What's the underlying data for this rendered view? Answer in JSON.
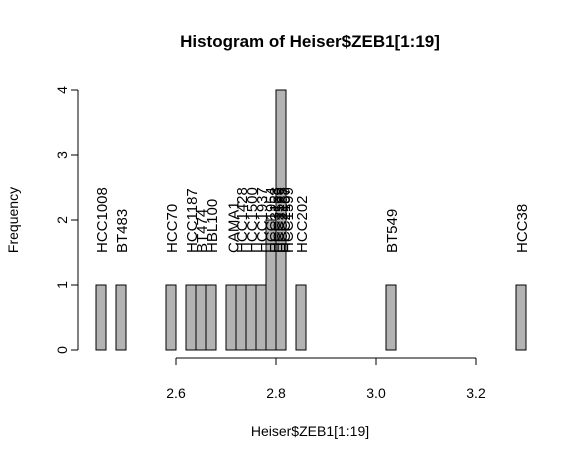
{
  "chart_data": {
    "type": "bar",
    "title": "Histogram of Heiser$ZEB1[1:19]",
    "xlabel": "Heiser$ZEB1[1:19]",
    "ylabel": "Frequency",
    "xlim": [
      2.4,
      3.3
    ],
    "ylim": [
      0,
      4
    ],
    "bin_width": 0.02,
    "x_ticks": [
      "2.6",
      "2.8",
      "3.0",
      "3.2"
    ],
    "y_ticks": [
      "0",
      "1",
      "2",
      "3",
      "4"
    ],
    "bar_fill": "#b3b3b3",
    "bar_stroke": "#000000",
    "bins": [
      {
        "start": 2.44,
        "count": 1
      },
      {
        "start": 2.48,
        "count": 1
      },
      {
        "start": 2.58,
        "count": 1
      },
      {
        "start": 2.62,
        "count": 1
      },
      {
        "start": 2.64,
        "count": 1
      },
      {
        "start": 2.66,
        "count": 1
      },
      {
        "start": 2.7,
        "count": 1
      },
      {
        "start": 2.72,
        "count": 1
      },
      {
        "start": 2.74,
        "count": 1
      },
      {
        "start": 2.76,
        "count": 1
      },
      {
        "start": 2.78,
        "count": 2
      },
      {
        "start": 2.8,
        "count": 4
      },
      {
        "start": 2.84,
        "count": 1
      },
      {
        "start": 3.02,
        "count": 1
      },
      {
        "start": 3.28,
        "count": 1
      }
    ],
    "labels": [
      {
        "text": "HCC1008",
        "x": 2.45
      },
      {
        "text": "BT483",
        "x": 2.49
      },
      {
        "text": "HCC70",
        "x": 2.59
      },
      {
        "text": "HCC1187",
        "x": 2.63
      },
      {
        "text": "BT474",
        "x": 2.65
      },
      {
        "text": "HBL100",
        "x": 2.67
      },
      {
        "text": "CAMA1",
        "x": 2.713
      },
      {
        "text": "HCC1428",
        "x": 2.73
      },
      {
        "text": "HCC1500",
        "x": 2.75
      },
      {
        "text": "HCC1937",
        "x": 2.77
      },
      {
        "text": "HCC1954",
        "x": 2.788
      },
      {
        "text": "HCC3153",
        "x": 2.796
      },
      {
        "text": "HCC1569",
        "x": 2.803
      },
      {
        "text": "HCC2185",
        "x": 2.81
      },
      {
        "text": "HCC2157",
        "x": 2.816
      },
      {
        "text": "HCC1599",
        "x": 2.822
      },
      {
        "text": "HCC202",
        "x": 2.85
      },
      {
        "text": "BT549",
        "x": 3.03
      },
      {
        "text": "HCC38",
        "x": 3.29
      }
    ]
  }
}
